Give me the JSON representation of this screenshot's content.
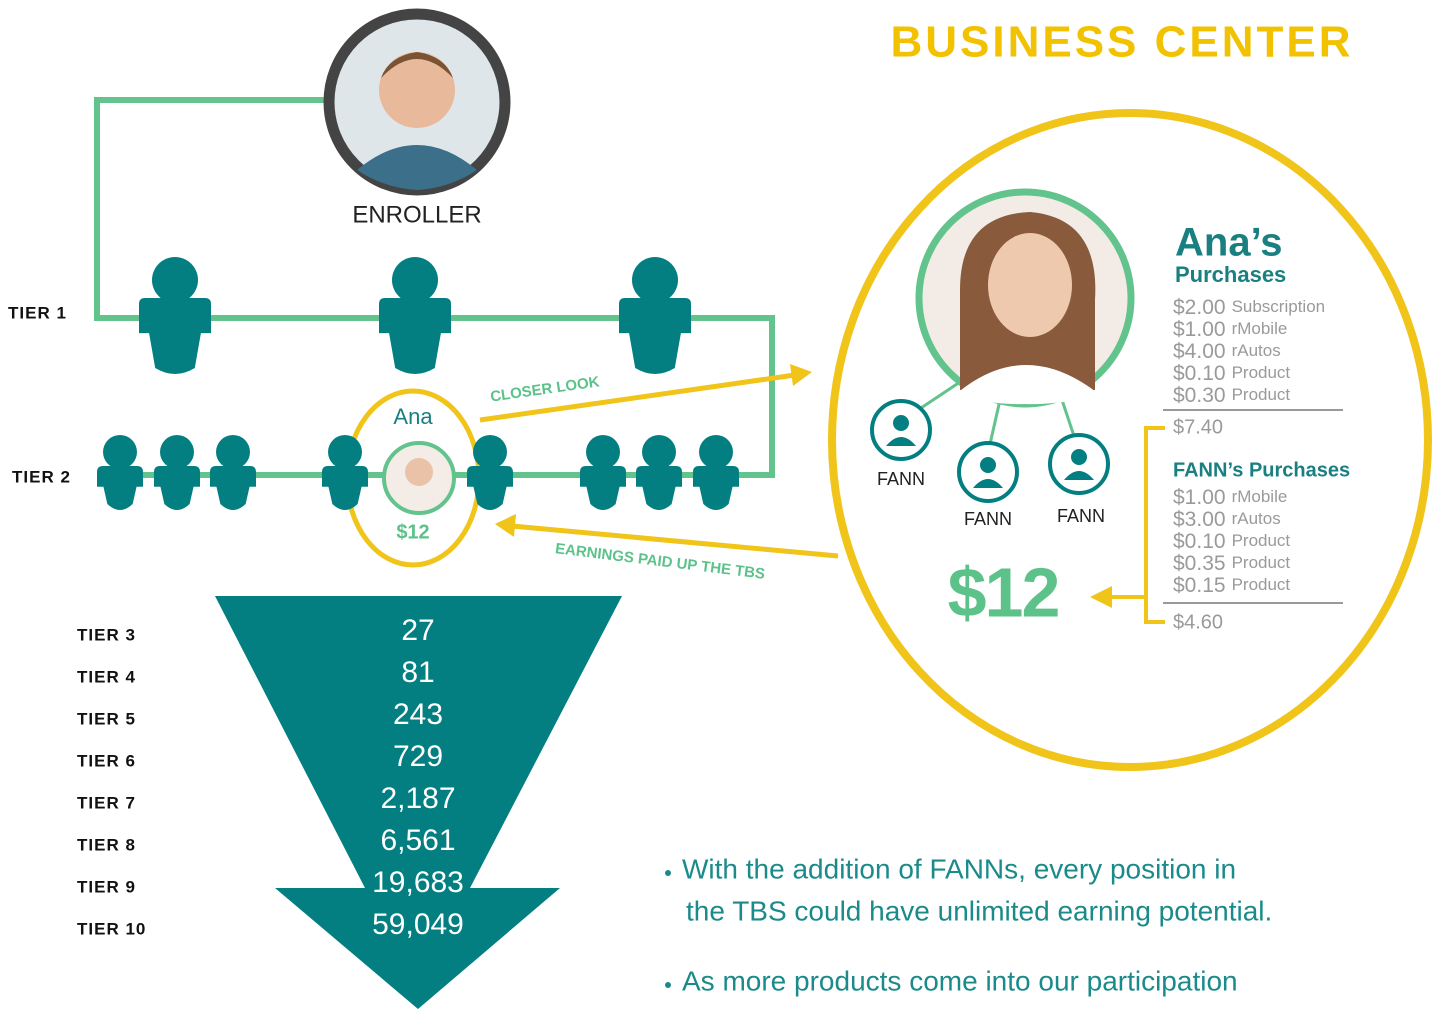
{
  "title": "BUSINESS CENTER",
  "enroller": {
    "label": "ENROLLER"
  },
  "tiers": [
    "TIER 1",
    "TIER 2"
  ],
  "ana": {
    "name": "Ana",
    "earnings": "$12"
  },
  "arrows": {
    "closer_look": "CLOSER LOOK",
    "earnings_paid": "EARNINGS PAID UP THE TBS"
  },
  "funnel": {
    "rows": [
      {
        "tier": "TIER 3",
        "count": "27"
      },
      {
        "tier": "TIER 4",
        "count": "81"
      },
      {
        "tier": "TIER 5",
        "count": "243"
      },
      {
        "tier": "TIER 6",
        "count": "729"
      },
      {
        "tier": "TIER 7",
        "count": "2,187"
      },
      {
        "tier": "TIER 8",
        "count": "6,561"
      },
      {
        "tier": "TIER 9",
        "count": "19,683"
      },
      {
        "tier": "TIER 10",
        "count": "59,049"
      }
    ]
  },
  "detail": {
    "heading": "Ana’s",
    "subheading": "Purchases",
    "items": [
      {
        "amount": "$2.00",
        "label": "Subscription"
      },
      {
        "amount": "$1.00",
        "label": "rMobile"
      },
      {
        "amount": "$4.00",
        "label": "rAutos"
      },
      {
        "amount": "$0.10",
        "label": "Product"
      },
      {
        "amount": "$0.30",
        "label": "Product"
      }
    ],
    "subtotal": "$7.40",
    "fann_heading": "FANN’s Purchases",
    "fann_items": [
      {
        "amount": "$1.00",
        "label": "rMobile"
      },
      {
        "amount": "$3.00",
        "label": "rAutos"
      },
      {
        "amount": "$0.10",
        "label": "Product"
      },
      {
        "amount": "$0.35",
        "label": "Product"
      },
      {
        "amount": "$0.15",
        "label": "Product"
      }
    ],
    "fann_subtotal": "$4.60",
    "total": "$12",
    "fann_labels": [
      "FANN",
      "FANN",
      "FANN"
    ]
  },
  "bullets": [
    [
      "With the addition of FANNs, every position in",
      "the TBS could have unlimited earning potential."
    ],
    [
      "As more products come into our participation"
    ]
  ]
}
